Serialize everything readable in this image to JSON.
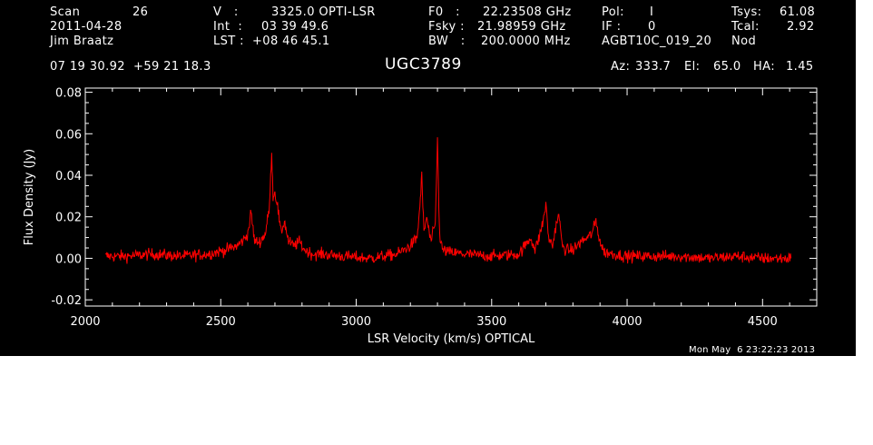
{
  "header": {
    "scan_label": "Scan",
    "scan_value": "26",
    "date": "2011-04-28",
    "observer": "Jim Braatz",
    "v_label": "V   :",
    "v_value": "3325.0 OPTI-LSR",
    "int_label": "Int  :",
    "int_value": "03 39 49.6",
    "lst_label": "LST :",
    "lst_value": "+08 46 45.1",
    "f0_label": "F0   :",
    "f0_value": "22.23508 GHz",
    "fsky_label": "Fsky :",
    "fsky_value": "21.98959 GHz",
    "bw_label": "BW   :",
    "bw_value": "200.0000 MHz",
    "pol_label": "Pol:",
    "pol_value": "I",
    "if_label": "IF :",
    "if_value": "0",
    "project": "AGBT10C_019_20",
    "tsys_label": "Tsys:",
    "tsys_value": "61.08",
    "tcal_label": "Tcal:",
    "tcal_value": "2.92",
    "mode": "Nod",
    "coords": "07 19 30.92  +59 21 18.3",
    "source": "UGC3789",
    "az_label": "Az:",
    "az_value": "333.7",
    "el_label": "El:",
    "el_value": "65.0",
    "ha_label": "HA:",
    "ha_value": "1.45",
    "timestamp": "Mon May  6 23:22:23 2013"
  },
  "chart_data": {
    "type": "line",
    "title": "UGC3789",
    "xlabel": "LSR Velocity (km/s) OPTICAL",
    "ylabel": "Flux Density (Jy)",
    "xlim": [
      2000,
      4700
    ],
    "ylim": [
      -0.023,
      0.082
    ],
    "xticks": [
      2000,
      2500,
      3000,
      3500,
      4000,
      4500
    ],
    "xtick_labels": [
      "2000",
      "2500",
      "3000",
      "3500",
      "4000",
      "4500"
    ],
    "yticks": [
      -0.02,
      0.0,
      0.02,
      0.04,
      0.06,
      0.08
    ],
    "ytick_labels": [
      "-0.02",
      "0.00",
      "0.02",
      "0.04",
      "0.06",
      "0.08"
    ],
    "grid": false,
    "line_color": "#ff0000",
    "axes_color": "#ffffff",
    "background": "#000000",
    "series": [
      {
        "x": [
          2075,
          2150,
          2250,
          2350,
          2450,
          2520,
          2560,
          2585,
          2600,
          2612,
          2625,
          2645,
          2665,
          2680,
          2688,
          2693,
          2700,
          2710,
          2722,
          2735,
          2750,
          2770,
          2790,
          2810,
          2840,
          2880,
          2950,
          3050,
          3150,
          3200,
          3225,
          3235,
          3242,
          3250,
          3260,
          3275,
          3292,
          3300,
          3305,
          3310,
          3320,
          3340,
          3400,
          3500,
          3600,
          3645,
          3660,
          3675,
          3690,
          3700,
          3710,
          3725,
          3740,
          3750,
          3760,
          3775,
          3800,
          3830,
          3855,
          3870,
          3885,
          3900,
          3915,
          3950,
          4000,
          4100,
          4200,
          4300,
          4400,
          4500,
          4605
        ],
        "values": [
          0.001,
          0.001,
          0.002,
          0.001,
          0.002,
          0.004,
          0.006,
          0.009,
          0.012,
          0.022,
          0.008,
          0.008,
          0.012,
          0.025,
          0.052,
          0.03,
          0.032,
          0.025,
          0.012,
          0.018,
          0.008,
          0.006,
          0.008,
          0.004,
          0.002,
          0.002,
          0.001,
          0.0,
          0.002,
          0.006,
          0.01,
          0.025,
          0.04,
          0.012,
          0.02,
          0.008,
          0.016,
          0.058,
          0.025,
          0.008,
          0.004,
          0.003,
          0.002,
          0.001,
          0.002,
          0.01,
          0.004,
          0.01,
          0.018,
          0.026,
          0.01,
          0.006,
          0.018,
          0.02,
          0.006,
          0.004,
          0.004,
          0.008,
          0.01,
          0.012,
          0.018,
          0.008,
          0.003,
          0.002,
          0.001,
          0.001,
          0.001,
          0.0,
          0.001,
          0.0,
          0.0
        ]
      }
    ]
  }
}
